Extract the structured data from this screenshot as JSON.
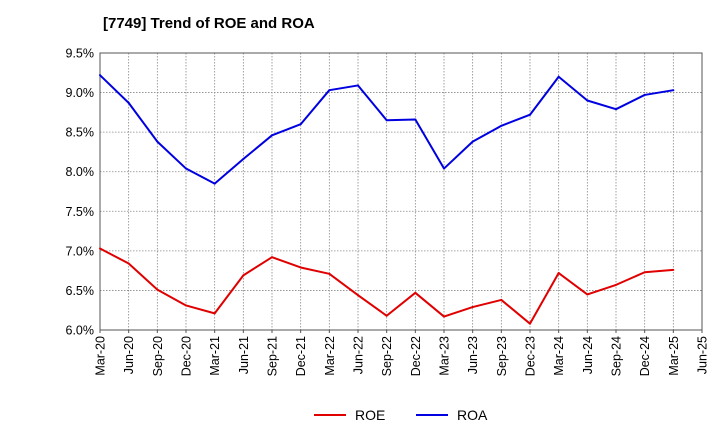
{
  "chart_data": {
    "type": "line",
    "title": "[7749]  Trend of ROE and ROA",
    "xlabel": "",
    "ylabel": "",
    "x": [
      "Mar-20",
      "Jun-20",
      "Sep-20",
      "Dec-20",
      "Mar-21",
      "Jun-21",
      "Sep-21",
      "Dec-21",
      "Mar-22",
      "Jun-22",
      "Sep-22",
      "Dec-22",
      "Mar-23",
      "Jun-23",
      "Sep-23",
      "Dec-23",
      "Mar-24",
      "Jun-24",
      "Sep-24",
      "Dec-24",
      "Mar-25",
      "Jun-25"
    ],
    "ylim": [
      6.0,
      9.5
    ],
    "yticks": [
      6.0,
      6.5,
      7.0,
      7.5,
      8.0,
      8.5,
      9.0,
      9.5
    ],
    "ytick_labels": [
      "6.0%",
      "6.5%",
      "7.0%",
      "7.5%",
      "8.0%",
      "8.5%",
      "9.0%",
      "9.5%"
    ],
    "grid": true,
    "legend_position": "bottom-center",
    "series": [
      {
        "name": "ROE",
        "color": "#e00000",
        "values": [
          7.03,
          6.84,
          6.51,
          6.31,
          6.21,
          6.69,
          6.92,
          6.79,
          6.71,
          6.44,
          6.18,
          6.47,
          6.17,
          6.29,
          6.38,
          6.08,
          6.72,
          6.45,
          6.57,
          6.73,
          6.76,
          null
        ]
      },
      {
        "name": "ROA",
        "color": "#0000e0",
        "values": [
          9.22,
          8.87,
          8.38,
          8.04,
          7.85,
          8.16,
          8.46,
          8.6,
          9.03,
          9.09,
          8.65,
          8.66,
          8.04,
          8.38,
          8.58,
          8.72,
          9.2,
          8.9,
          8.79,
          8.97,
          9.03,
          null
        ]
      }
    ]
  }
}
